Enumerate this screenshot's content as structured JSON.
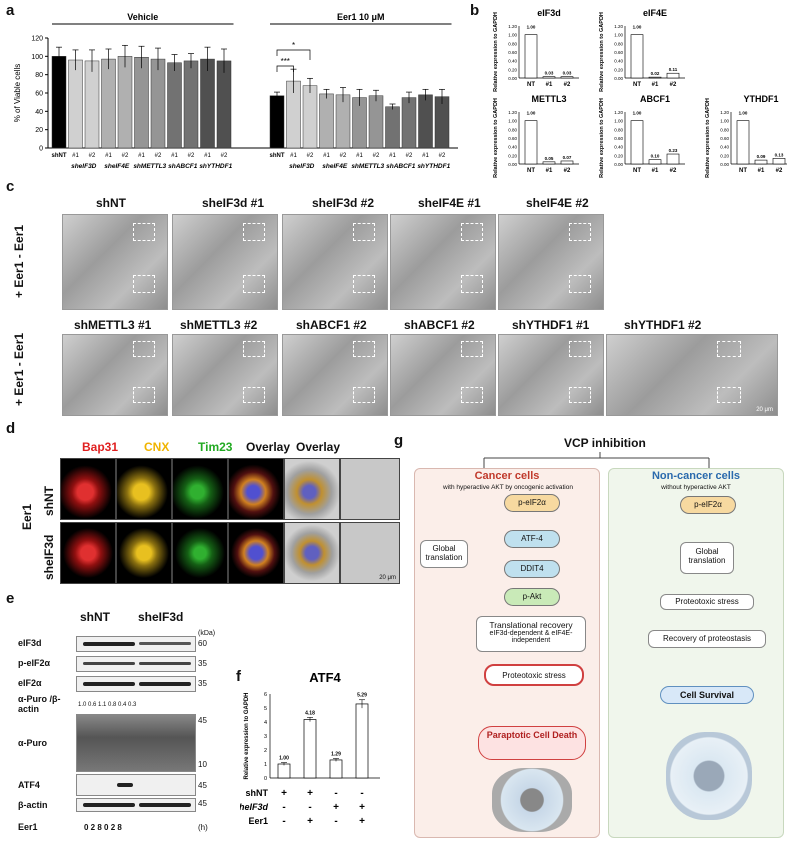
{
  "panels": {
    "a": "a",
    "b": "b",
    "c": "c",
    "d": "d",
    "e": "e",
    "f": "f",
    "g": "g"
  },
  "panel_a": {
    "chart_data": {
      "type": "bar",
      "ylabel": "% of Viable cells",
      "ylim": [
        0,
        120
      ],
      "yticks": [
        "0",
        "20",
        "40",
        "60",
        "80",
        "100",
        "120"
      ],
      "groups": [
        {
          "label": "Vehicle",
          "bars": [
            {
              "cat": "shNT",
              "value": 100,
              "err": 10,
              "color": "#000000"
            },
            {
              "cat": "#1",
              "value": 96,
              "err": 11,
              "color": "#d0d0d0"
            },
            {
              "cat": "#2",
              "value": 95,
              "err": 12,
              "color": "#d0d0d0"
            },
            {
              "cat": "#1",
              "value": 97,
              "err": 11,
              "color": "#b0b0b0"
            },
            {
              "cat": "#2",
              "value": 100,
              "err": 12,
              "color": "#b0b0b0"
            },
            {
              "cat": "#1",
              "value": 99,
              "err": 12,
              "color": "#959595"
            },
            {
              "cat": "#2",
              "value": 97,
              "err": 12,
              "color": "#959595"
            },
            {
              "cat": "#1",
              "value": 93,
              "err": 9,
              "color": "#727272"
            },
            {
              "cat": "#2",
              "value": 95,
              "err": 8,
              "color": "#727272"
            },
            {
              "cat": "#1",
              "value": 97,
              "err": 13,
              "color": "#505050"
            },
            {
              "cat": "#2",
              "value": 95,
              "err": 13,
              "color": "#505050"
            }
          ]
        },
        {
          "label": "Eer1 10 μM",
          "bars": [
            {
              "cat": "shNT",
              "value": 57,
              "err": 4,
              "color": "#000000"
            },
            {
              "cat": "#1",
              "value": 73,
              "err": 13,
              "color": "#d0d0d0"
            },
            {
              "cat": "#2",
              "value": 68,
              "err": 8,
              "color": "#d0d0d0"
            },
            {
              "cat": "#1",
              "value": 59,
              "err": 5,
              "color": "#b0b0b0"
            },
            {
              "cat": "#2",
              "value": 58,
              "err": 8,
              "color": "#b0b0b0"
            },
            {
              "cat": "#1",
              "value": 55,
              "err": 9,
              "color": "#959595"
            },
            {
              "cat": "#2",
              "value": 57,
              "err": 6,
              "color": "#959595"
            },
            {
              "cat": "#1",
              "value": 45,
              "err": 3,
              "color": "#727272"
            },
            {
              "cat": "#2",
              "value": 55,
              "err": 6,
              "color": "#727272"
            },
            {
              "cat": "#1",
              "value": 58,
              "err": 6,
              "color": "#505050"
            },
            {
              "cat": "#2",
              "value": 56,
              "err": 8,
              "color": "#505050"
            }
          ]
        }
      ],
      "sublabels": [
        "sheIF3D",
        "sheIF4E",
        "shMETTL3",
        "shABCF1",
        "shYTHDF1"
      ],
      "sig": [
        "***",
        "*"
      ]
    }
  },
  "panel_b": {
    "ylabel": "Relative expression to GAPDH",
    "charts": [
      {
        "title": "eIF3d",
        "values": [
          1.0,
          0.03,
          0.03
        ],
        "labels": [
          "1.00",
          "0.03",
          "0.03"
        ]
      },
      {
        "title": "eIF4E",
        "values": [
          1.0,
          0.02,
          0.11
        ],
        "labels": [
          "1.00",
          "0.02",
          "0.11"
        ]
      },
      {
        "title": "METTL3",
        "values": [
          1.0,
          0.05,
          0.07
        ],
        "labels": [
          "1.00",
          "0.05",
          "0.07"
        ]
      },
      {
        "title": "ABCF1",
        "values": [
          1.0,
          0.1,
          0.23
        ],
        "labels": [
          "1.00",
          "0.10",
          "0.23"
        ]
      },
      {
        "title": "YTHDF1",
        "values": [
          1.0,
          0.09,
          0.13
        ],
        "labels": [
          "1.00",
          "0.09",
          "0.13"
        ]
      }
    ],
    "cats": [
      "NT",
      "#1",
      "#2"
    ],
    "yticks": [
      "0.00",
      "0.20",
      "0.40",
      "0.60",
      "0.80",
      "1.00",
      "1.20"
    ]
  },
  "panel_c": {
    "side_label": "+ Eer1 - Eer1",
    "row1": [
      "shNT",
      "sheIF3d #1",
      "sheIF3d #2",
      "sheIF4E #1",
      "sheIF4E #2"
    ],
    "row2": [
      "shMETTL3 #1",
      "shMETTL3 #2",
      "shABCF1 #2",
      "shABCF1 #2",
      "shYTHDF1 #1",
      "shYTHDF1 #2"
    ],
    "scale": "20 μm"
  },
  "panel_d": {
    "channels": [
      "Bap31",
      "CNX",
      "Tim23",
      "Overlay",
      "Overlay"
    ],
    "channel_colors": [
      "#e02020",
      "#f0b400",
      "#22aa22",
      "#111111",
      "#111111"
    ],
    "rows": [
      "shNT",
      "sheIF3d"
    ],
    "group": "Eer1",
    "scale": "20 μm"
  },
  "panel_e": {
    "header": [
      "shNT",
      "sheIF3d"
    ],
    "rows": [
      "eIF3d",
      "p-eIF2α",
      "eIF2α",
      "α-Puro /β-actin",
      "α-Puro",
      "ATF4",
      "β-actin"
    ],
    "kda_label": "(kDa)",
    "markers": [
      "60",
      "35",
      "35",
      "45",
      "10",
      "45",
      "45"
    ],
    "ratios": "1.0  0.6  1.1     0.8  0.4  0.3",
    "eer1_label": "Eer1",
    "times": "0  2  8      0  2  8",
    "time_unit": "(h)"
  },
  "panel_f": {
    "chart_data": {
      "type": "bar",
      "title": "ATF4",
      "ylabel": "Relative expression to GAPDH",
      "ylim": [
        0,
        6
      ],
      "yticks": [
        "0",
        "1",
        "2",
        "3",
        "4",
        "5",
        "6"
      ],
      "values": [
        1.0,
        4.18,
        1.29,
        5.29
      ],
      "labels": [
        "1.00",
        "4.18",
        "1.29",
        "5.29"
      ],
      "errors": [
        0.1,
        0.15,
        0.1,
        0.3
      ]
    },
    "conditions": [
      {
        "name": "shNT",
        "signs": [
          "+",
          "+",
          "-",
          "-"
        ]
      },
      {
        "name": "sheIF3d",
        "signs": [
          "-",
          "-",
          "+",
          "+"
        ]
      },
      {
        "name": "Eer1",
        "signs": [
          "-",
          "+",
          "-",
          "+"
        ]
      }
    ]
  },
  "panel_g": {
    "title": "VCP inhibition",
    "cancer": {
      "title": "Cancer cells",
      "sub": "with hyperactive AKT by oncogenic activation",
      "nodes": [
        "p-eIF2α",
        "ATF-4",
        "DDIT4",
        "p-Akt"
      ],
      "global": "Global translation",
      "recovery_title": "Translational recovery",
      "recovery_sub": "eIF3d-dependent & eIF4E-independent",
      "stress": "Proteotoxic stress",
      "death": "Paraptotic Cell Death"
    },
    "noncancer": {
      "title": "Non-cancer cells",
      "sub": "without hyperactive AKT",
      "peif": "p-eIF2α",
      "global": "Global translation",
      "stress": "Proteotoxic stress",
      "recovery": "Recovery of proteostasis",
      "survival": "Cell Survival"
    }
  }
}
